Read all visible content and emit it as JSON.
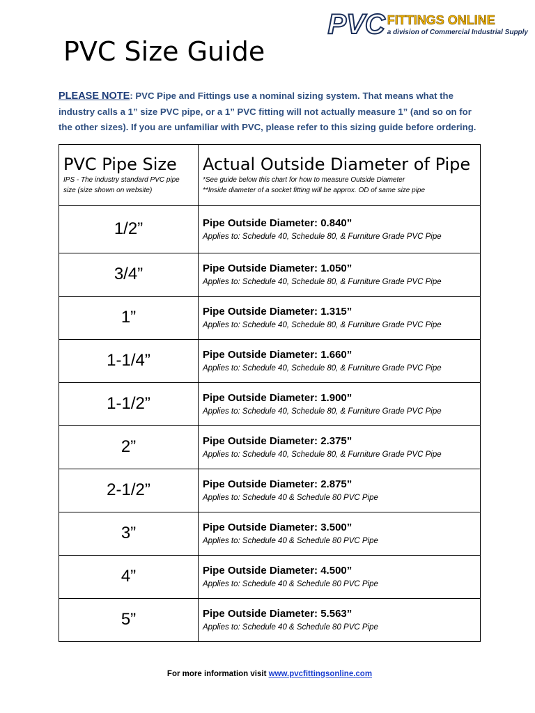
{
  "title": "PVC Size Guide",
  "logo": {
    "main": "PVC",
    "sub": "FITTINGS ONLINE",
    "tagline": "a division of Commercial Industrial Supply"
  },
  "note": {
    "label": "PLEASE NOTE",
    "text": ": PVC Pipe and Fittings use a nominal sizing system. That means what the industry calls a 1” size PVC pipe, or a 1” PVC fitting will not actually measure 1” (and so on for the other sizes). If you are unfamiliar with PVC, please refer to this sizing guide before ordering."
  },
  "table": {
    "col1": {
      "title": "PVC Pipe Size",
      "sub": "IPS - The industry standard PVC pipe size (size shown on website)"
    },
    "col2": {
      "title": "Actual Outside Diameter of Pipe",
      "sub1": "*See guide below this chart for how to measure Outside Diameter",
      "sub2": "**Inside diameter of a socket fitting will be approx. OD of same size pipe"
    },
    "rows": [
      {
        "size": "1/2”",
        "od": "Pipe Outside Diameter: 0.840”",
        "applies": "Applies to: Schedule 40, Schedule 80, & Furniture Grade PVC Pipe"
      },
      {
        "size": "3/4”",
        "od": "Pipe Outside Diameter: 1.050”",
        "applies": "Applies to: Schedule 40, Schedule 80, & Furniture Grade PVC Pipe"
      },
      {
        "size": "1”",
        "od": "Pipe Outside Diameter: 1.315”",
        "applies": "Applies to: Schedule 40, Schedule 80, & Furniture Grade PVC Pipe"
      },
      {
        "size": "1-1/4”",
        "od": "Pipe Outside Diameter: 1.660”",
        "applies": "Applies to: Schedule 40, Schedule 80, & Furniture Grade PVC Pipe"
      },
      {
        "size": "1-1/2”",
        "od": "Pipe Outside Diameter: 1.900”",
        "applies": "Applies to: Schedule 40, Schedule 80, & Furniture Grade PVC Pipe"
      },
      {
        "size": "2”",
        "od": "Pipe Outside Diameter: 2.375”",
        "applies": "Applies to: Schedule 40, Schedule 80, & Furniture Grade PVC Pipe"
      },
      {
        "size": "2-1/2”",
        "od": "Pipe Outside Diameter: 2.875”",
        "applies": "Applies to: Schedule 40 & Schedule 80 PVC Pipe"
      },
      {
        "size": "3”",
        "od": "Pipe Outside Diameter: 3.500”",
        "applies": "Applies to: Schedule 40 & Schedule 80 PVC Pipe"
      },
      {
        "size": "4”",
        "od": "Pipe Outside Diameter: 4.500”",
        "applies": "Applies to: Schedule 40 & Schedule 80 PVC Pipe"
      },
      {
        "size": "5”",
        "od": "Pipe Outside Diameter: 5.563”",
        "applies": "Applies to: Schedule 40 & Schedule 80 PVC Pipe"
      }
    ]
  },
  "footer": {
    "text": "For more information visit ",
    "link": "www.pvcfittingsonline.com"
  }
}
